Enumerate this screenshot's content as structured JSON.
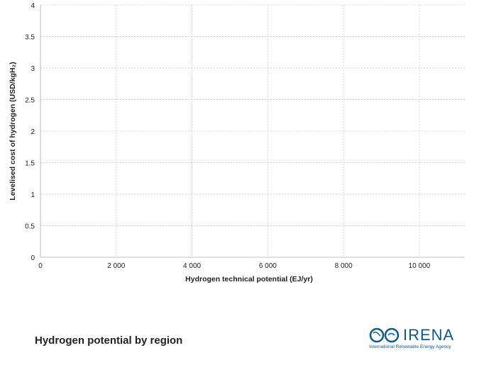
{
  "chart_data": {
    "type": "scatter",
    "title": "",
    "xlabel": "Hydrogen technical potential (EJ/yr)",
    "ylabel": "Levelised cost of hydrogen (USD/kgH₂)",
    "xlim": [
      0,
      11200
    ],
    "ylim": [
      0,
      4
    ],
    "x_ticks": [
      0,
      2000,
      4000,
      6000,
      8000,
      10000
    ],
    "x_tick_labels": [
      "0",
      "2 000",
      "4 000",
      "6 000",
      "8 000",
      "10 000"
    ],
    "y_ticks": [
      0,
      0.5,
      1,
      1.5,
      2,
      2.5,
      3,
      3.5,
      4
    ],
    "y_tick_labels": [
      "0",
      "0.5",
      "1",
      "1.5",
      "2",
      "2.5",
      "3",
      "3.5",
      "4"
    ],
    "grid": true,
    "series": []
  },
  "footer": {
    "title": "Hydrogen potential by region"
  },
  "logo": {
    "wordmark": "IRENA",
    "tagline": "International Renewable Energy Agency",
    "color": "#0a5a8c"
  }
}
